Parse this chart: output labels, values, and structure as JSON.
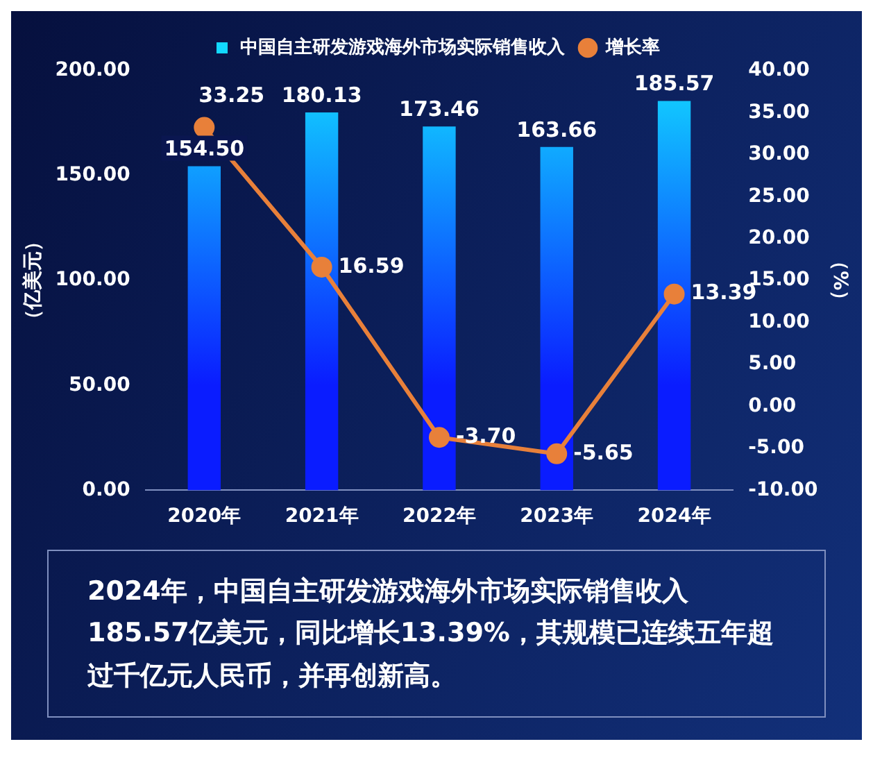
{
  "chart_data": {
    "type": "bar",
    "categories": [
      "2020年",
      "2021年",
      "2022年",
      "2023年",
      "2024年"
    ],
    "series": [
      {
        "name": "中国自主研发游戏海外市场实际销售收入",
        "color": "#12d8ff",
        "values": [
          154.5,
          180.13,
          173.46,
          163.66,
          185.57
        ],
        "value_labels": [
          "154.50",
          "180.13",
          "173.46",
          "163.66",
          "185.57"
        ]
      },
      {
        "name": "增长率",
        "type": "line",
        "color": "#e8803a",
        "axis": "y2",
        "values": [
          33.25,
          16.59,
          -3.7,
          -5.65,
          13.39
        ],
        "value_labels": [
          "33.25",
          "16.59",
          "-3.70",
          "-5.65",
          "13.39"
        ]
      }
    ],
    "ylabel": "（亿美元）",
    "y2label": "（%）",
    "ylim": [
      0,
      200
    ],
    "yticks": [
      {
        "value": 0,
        "label": "0.00"
      },
      {
        "value": 50,
        "label": "50.00"
      },
      {
        "value": 100,
        "label": "100.00"
      },
      {
        "value": 150,
        "label": "150.00"
      },
      {
        "value": 200,
        "label": "200.00"
      }
    ],
    "y2lim": [
      -10,
      40
    ],
    "y2ticks": [
      {
        "value": -10,
        "label": "-10.00"
      },
      {
        "value": -5,
        "label": "-5.00"
      },
      {
        "value": 0,
        "label": "0.00"
      },
      {
        "value": 5,
        "label": "5.00"
      },
      {
        "value": 10,
        "label": "10.00"
      },
      {
        "value": 15,
        "label": "15.00"
      },
      {
        "value": 20,
        "label": "20.00"
      },
      {
        "value": 25,
        "label": "25.00"
      },
      {
        "value": 30,
        "label": "30.00"
      },
      {
        "value": 35,
        "label": "35.00"
      },
      {
        "value": 40,
        "label": "40.00"
      }
    ],
    "legend": "top",
    "grid": false,
    "marker": "circle",
    "annotations": [
      "2024年，中国自主研发游戏海外市场实际销售收入185.57亿美元，同比增长13.39%，其规模已连续五年超过千亿元人民币，并再创新高。"
    ]
  }
}
